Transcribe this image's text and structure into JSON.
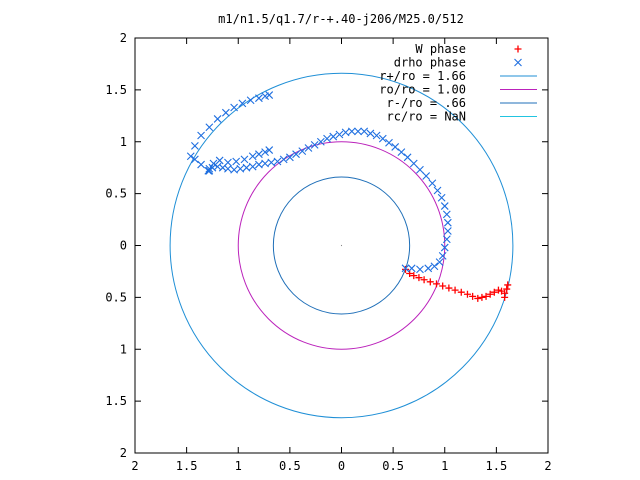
{
  "chart_data": {
    "type": "scatter",
    "title": "m1/n1.5/q1.7/r-+.40-j206/M25.0/512",
    "xlim": [
      -2,
      2
    ],
    "ylim": [
      -2,
      2
    ],
    "x_tick_labels": [
      "2",
      "1.5",
      "1",
      "0.5",
      "0",
      "0.5",
      "1",
      "1.5",
      "2"
    ],
    "y_tick_labels": [
      "2",
      "1.5",
      "1",
      "0.5",
      "0",
      "0.5",
      "1",
      "1.5",
      "2"
    ],
    "x_ticks": [
      -2,
      -1.5,
      -1,
      -0.5,
      0,
      0.5,
      1,
      1.5,
      2
    ],
    "y_ticks": [
      2,
      1.5,
      1,
      0.5,
      0,
      -0.5,
      -1,
      -1.5,
      -2
    ],
    "legend_position": "top-right",
    "grid": false,
    "series": [
      {
        "name": "W phase",
        "kind": "points",
        "marker": "plus",
        "color": "#ff0000",
        "x": [
          0.62,
          0.66,
          0.7,
          0.75,
          0.8,
          0.86,
          0.92,
          0.98,
          1.04,
          1.1,
          1.16,
          1.22,
          1.27,
          1.32,
          1.36,
          1.4,
          1.44,
          1.48,
          1.52,
          1.55,
          1.58,
          1.6,
          1.61,
          1.58
        ],
        "y": [
          -0.23,
          -0.27,
          -0.29,
          -0.31,
          -0.33,
          -0.35,
          -0.37,
          -0.39,
          -0.41,
          -0.43,
          -0.45,
          -0.47,
          -0.49,
          -0.51,
          -0.5,
          -0.49,
          -0.47,
          -0.45,
          -0.43,
          -0.44,
          -0.46,
          -0.42,
          -0.38,
          -0.5
        ]
      },
      {
        "name": "drho phase",
        "kind": "points",
        "marker": "cross",
        "color": "#1f6fe0",
        "x": [
          0.62,
          0.68,
          0.76,
          0.84,
          0.9,
          0.95,
          0.98,
          1.0,
          1.02,
          1.03,
          1.03,
          1.02,
          1.0,
          0.97,
          0.93,
          0.88,
          0.82,
          0.76,
          0.7,
          0.64,
          0.58,
          0.52,
          0.46,
          0.4,
          0.34,
          0.28,
          0.22,
          0.16,
          0.1,
          0.04,
          -0.02,
          -0.08,
          -0.14,
          -0.2,
          -0.26,
          -0.32,
          -0.38,
          -0.44,
          -0.5,
          -0.56,
          -0.62,
          -0.68,
          -0.74,
          -0.8,
          -0.86,
          -0.92,
          -0.98,
          -1.04,
          -1.1,
          -1.15,
          -1.2,
          -1.25,
          -1.28,
          -1.29,
          -1.24,
          -1.18,
          -1.1,
          -1.02,
          -0.94,
          -0.86,
          -0.8,
          -0.74,
          -0.7,
          -1.28,
          -1.36,
          -1.42,
          -1.46,
          -1.42,
          -1.36,
          -1.28,
          -1.2,
          -1.12,
          -1.04,
          -0.96,
          -0.88,
          -0.8,
          -0.74,
          -0.7
        ],
        "y": [
          -0.22,
          -0.22,
          -0.23,
          -0.22,
          -0.2,
          -0.16,
          -0.1,
          -0.02,
          0.06,
          0.14,
          0.22,
          0.3,
          0.38,
          0.46,
          0.53,
          0.6,
          0.67,
          0.73,
          0.79,
          0.85,
          0.9,
          0.95,
          0.99,
          1.03,
          1.06,
          1.08,
          1.1,
          1.1,
          1.1,
          1.09,
          1.07,
          1.05,
          1.03,
          1.0,
          0.97,
          0.94,
          0.91,
          0.88,
          0.85,
          0.83,
          0.81,
          0.8,
          0.79,
          0.78,
          0.76,
          0.75,
          0.74,
          0.73,
          0.74,
          0.75,
          0.76,
          0.75,
          0.74,
          0.72,
          0.79,
          0.82,
          0.8,
          0.81,
          0.83,
          0.86,
          0.88,
          0.9,
          0.92,
          0.72,
          0.78,
          0.83,
          0.86,
          0.96,
          1.06,
          1.14,
          1.22,
          1.28,
          1.33,
          1.37,
          1.4,
          1.42,
          1.44,
          1.45
        ]
      },
      {
        "name": "r+/ro = 1.66",
        "kind": "circle",
        "radius": 1.66,
        "color": "#1f8fd6"
      },
      {
        "name": "ro/ro = 1.00",
        "kind": "circle",
        "radius": 1.0,
        "color": "#bb22bb"
      },
      {
        "name": "r-/ro = .66",
        "kind": "circle",
        "radius": 0.66,
        "color": "#1f6fb8"
      },
      {
        "name": "rc/ro = NaN",
        "kind": "circle",
        "radius": null,
        "color": "#22c4e0"
      }
    ]
  }
}
